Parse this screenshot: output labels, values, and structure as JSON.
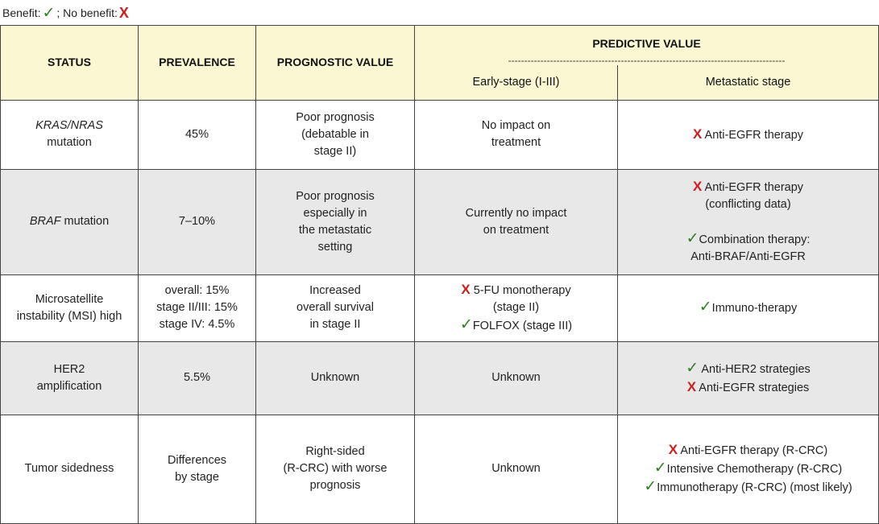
{
  "legend": {
    "benefit_label": "Benefit:",
    "separator": "; No benefit:",
    "benefit_icon": "check-icon",
    "no_benefit_icon": "cross-icon"
  },
  "header": {
    "status": "STATUS",
    "prevalence": "PREVALENCE",
    "prognostic": "PROGNOSTIC VALUE",
    "predictive": "PREDICTIVE VALUE",
    "dashes": "--------------------------------------------------------------------------------------",
    "early": "Early-stage (I-III)",
    "metastatic": "Metastatic stage"
  },
  "rows": [
    {
      "status_italic": "KRAS/NRAS",
      "status_rest": "mutation",
      "prevalence": "45%",
      "prognostic": [
        "Poor prognosis",
        "(debatable in",
        "stage II)"
      ],
      "early": [
        "No impact on",
        "treatment"
      ],
      "metastatic": [
        "Anti-EGFR therapy"
      ]
    },
    {
      "status_italic": "BRAF",
      "status_rest": " mutation",
      "prevalence": "7–10%",
      "prognostic": [
        "Poor prognosis",
        "especially in",
        "the metastatic",
        "setting"
      ],
      "early": [
        "Currently no impact",
        "on treatment"
      ],
      "metastatic": [
        "Anti-EGFR therapy",
        "(conflicting data)",
        "Combination therapy:",
        "Anti-BRAF/Anti-EGFR"
      ]
    },
    {
      "status": [
        "Microsatellite",
        "instability (MSI) high"
      ],
      "prevalence": [
        "overall: 15%",
        "stage II/III: 15%",
        "stage IV: 4.5%"
      ],
      "prognostic": [
        "Increased",
        "overall survival",
        "in stage II"
      ],
      "early": [
        "5-FU monotherapy",
        "(stage II)",
        "FOLFOX (stage III)"
      ],
      "metastatic": [
        "Immuno-therapy"
      ]
    },
    {
      "status": [
        "HER2",
        "amplification"
      ],
      "prevalence": "5.5%",
      "prognostic": "Unknown",
      "early": "Unknown",
      "metastatic": [
        "Anti-HER2 strategies",
        "Anti-EGFR strategies"
      ]
    },
    {
      "status": "Tumor sidedness",
      "prevalence": [
        "Differences",
        "by stage"
      ],
      "prognostic": [
        "Right-sided",
        "(R-CRC) with worse",
        "prognosis"
      ],
      "early": "Unknown",
      "metastatic": [
        "Anti-EGFR therapy (R-CRC)",
        "Intensive Chemotherapy (R-CRC)",
        "Immunotherapy (R-CRC) (most likely)"
      ]
    }
  ],
  "symbols": {
    "check": "✓",
    "cross": "X"
  },
  "colors": {
    "header_bg": "#fbf7d2",
    "shaded_row": "#e8e8e8",
    "check": "#2e7d1f",
    "cross": "#d01c1c"
  }
}
